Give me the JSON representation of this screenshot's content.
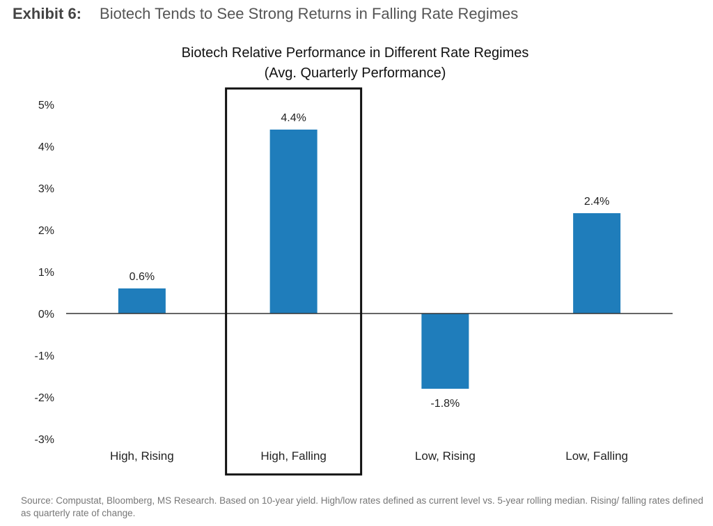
{
  "exhibit": {
    "label": "Exhibit 6:",
    "title": "Biotech Tends to See Strong Returns in Falling Rate Regimes"
  },
  "source_note": "Source: Compustat, Bloomberg, MS Research. Based on 10-year yield. High/low rates defined as current level vs. 5-year rolling median. Rising/ falling rates defined as quarterly rate of change.",
  "colors": {
    "bar": "#1f7dbb",
    "axis": "#333333",
    "highlight_box": "#111111"
  },
  "chart_data": {
    "type": "bar",
    "title": "Biotech Relative Performance in Different Rate Regimes",
    "subtitle": "(Avg. Quarterly Performance)",
    "categories": [
      "High, Rising",
      "High, Falling",
      "Low, Rising",
      "Low, Falling"
    ],
    "values": [
      0.6,
      4.4,
      -1.8,
      2.4
    ],
    "data_labels": [
      "0.6%",
      "4.4%",
      "-1.8%",
      "2.4%"
    ],
    "yticks": [
      5,
      4,
      3,
      2,
      1,
      0,
      -1,
      -2,
      -3
    ],
    "ytick_labels": [
      "5%",
      "4%",
      "3%",
      "2%",
      "1%",
      "0%",
      "-1%",
      "-2%",
      "-3%"
    ],
    "ylim": [
      -3,
      5
    ],
    "grid": false,
    "highlighted_category": "High, Falling"
  }
}
